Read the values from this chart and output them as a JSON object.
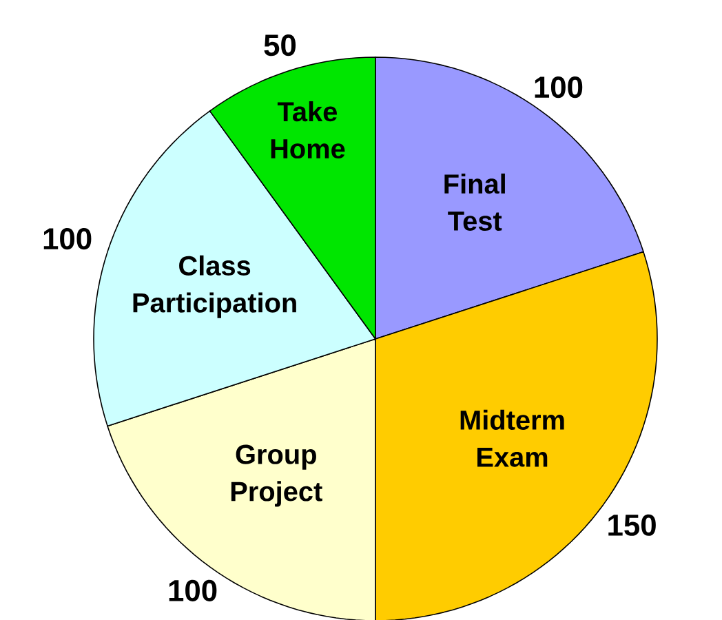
{
  "chart_data": {
    "type": "pie",
    "categories": [
      "Final Test",
      "Midterm Exam",
      "Group Project",
      "Class Participation",
      "Take Home"
    ],
    "values": [
      100,
      150,
      100,
      100,
      50
    ],
    "colors": [
      "#9999ff",
      "#ffcc00",
      "#ffffcc",
      "#ccffff",
      "#00e600"
    ],
    "data_labels": true
  }
}
